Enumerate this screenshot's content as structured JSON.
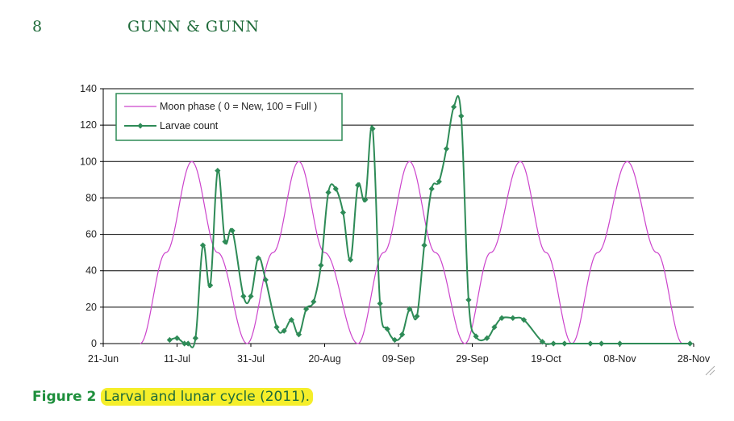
{
  "header": {
    "page_number": "8",
    "running_head": "GUNN & GUNN"
  },
  "caption": {
    "label": "Figure 2",
    "text": "Larval and lunar cycle (2011)."
  },
  "colors": {
    "moon": "#cc44cc",
    "larvae": "#2e8b57",
    "legend_border": "#2e8b57",
    "grid": "#000000",
    "caption_label": "#1e8f3c",
    "caption_highlight": "#f5ee2a"
  },
  "chart_data": {
    "type": "line",
    "title": "",
    "xlabel": "",
    "ylabel": "",
    "x_start": "2011-06-21",
    "x_end": "2011-11-28",
    "xticks": [
      "21-Jun",
      "11-Jul",
      "31-Jul",
      "20-Aug",
      "09-Sep",
      "29-Sep",
      "19-Oct",
      "08-Nov",
      "28-Nov"
    ],
    "ylim": [
      0,
      140
    ],
    "yticks": [
      0,
      20,
      40,
      60,
      80,
      100,
      120,
      140
    ],
    "grid": "horizontal",
    "legend_placement": "top-left",
    "series": [
      {
        "name": "Moon phase ( 0 = New, 100 = Full )",
        "style": "line",
        "x": [
          "2011-07-01",
          "2011-07-08",
          "2011-07-15",
          "2011-07-22",
          "2011-07-30",
          "2011-08-06",
          "2011-08-13",
          "2011-08-20",
          "2011-08-29",
          "2011-09-05",
          "2011-09-12",
          "2011-09-19",
          "2011-09-27",
          "2011-10-04",
          "2011-10-12",
          "2011-10-19",
          "2011-10-26",
          "2011-11-02",
          "2011-11-10",
          "2011-11-18",
          "2011-11-25"
        ],
        "values": [
          0,
          50,
          100,
          50,
          0,
          50,
          100,
          50,
          0,
          50,
          100,
          50,
          0,
          50,
          100,
          50,
          0,
          50,
          100,
          50,
          0
        ]
      },
      {
        "name": "Larvae count",
        "style": "line-markers",
        "x": [
          "2011-07-09",
          "2011-07-11",
          "2011-07-13",
          "2011-07-14",
          "2011-07-16",
          "2011-07-18",
          "2011-07-20",
          "2011-07-22",
          "2011-07-24",
          "2011-07-26",
          "2011-07-29",
          "2011-07-31",
          "2011-08-02",
          "2011-08-04",
          "2011-08-07",
          "2011-08-09",
          "2011-08-11",
          "2011-08-13",
          "2011-08-15",
          "2011-08-17",
          "2011-08-19",
          "2011-08-21",
          "2011-08-23",
          "2011-08-25",
          "2011-08-27",
          "2011-08-29",
          "2011-08-31",
          "2011-09-02",
          "2011-09-04",
          "2011-09-06",
          "2011-09-08",
          "2011-09-10",
          "2011-09-12",
          "2011-09-14",
          "2011-09-16",
          "2011-09-18",
          "2011-09-20",
          "2011-09-22",
          "2011-09-24",
          "2011-09-26",
          "2011-09-28",
          "2011-09-30",
          "2011-10-03",
          "2011-10-05",
          "2011-10-07",
          "2011-10-10",
          "2011-10-13",
          "2011-10-18",
          "2011-10-21",
          "2011-10-24",
          "2011-10-31",
          "2011-11-03",
          "2011-11-08",
          "2011-11-27"
        ],
        "values": [
          2,
          3,
          0,
          0,
          3,
          54,
          32,
          95,
          56,
          62,
          26,
          26,
          47,
          35,
          9,
          7,
          13,
          5,
          19,
          23,
          43,
          83,
          85,
          72,
          46,
          87,
          79,
          118,
          22,
          8,
          2,
          5,
          19,
          15,
          54,
          85,
          89,
          107,
          130,
          125,
          24,
          4,
          3,
          9,
          14,
          14,
          13,
          1,
          0,
          0,
          0,
          0,
          0,
          0
        ]
      }
    ]
  }
}
